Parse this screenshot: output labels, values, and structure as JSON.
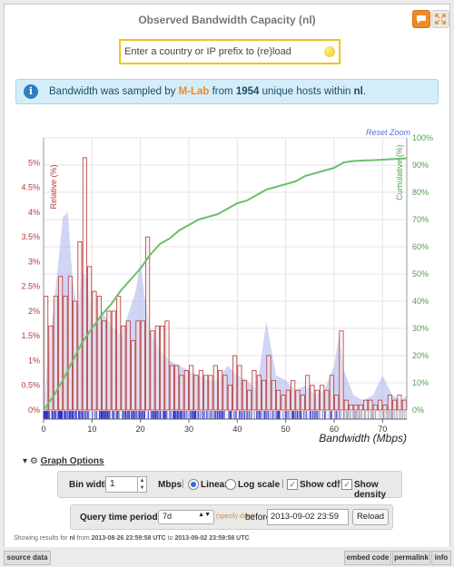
{
  "header": {
    "title": "Observed Bandwidth Capacity (nl)",
    "comment_icon": "speech-bubble-icon",
    "fullscreen_icon": "fullscreen-icon",
    "accent_color": "#f08a24"
  },
  "search": {
    "placeholder": "Enter a country or IP prefix to (re)load"
  },
  "info": {
    "icon": "info-icon",
    "pre": "Bandwidth was sampled by ",
    "source": "M-Lab",
    "mid": " from ",
    "hosts": "1954",
    "mid2": " unique hosts within ",
    "country": "nl",
    "end": "."
  },
  "chart": {
    "reset_zoom": "Reset Zoom"
  },
  "chart_data": {
    "type": "bar",
    "xlabel": "Bandwidth (Mbps)",
    "ylabel_left": "Relative (%)",
    "ylabel_right": "Cumulative (%)",
    "xlim": [
      0,
      75
    ],
    "ylim_left": [
      0,
      5.5
    ],
    "ylim_right": [
      0,
      100
    ],
    "x_ticks": [
      0,
      10,
      20,
      30,
      40,
      50,
      60,
      70
    ],
    "y_ticks_left": [
      "0%",
      "0.5%",
      "1%",
      "1.5%",
      "2%",
      "2.5%",
      "3%",
      "3.5%",
      "4%",
      "4.5%",
      "5%"
    ],
    "y_ticks_right": [
      "0%",
      "10%",
      "20%",
      "30%",
      "40%",
      "50%",
      "60%",
      "70%",
      "80%",
      "90%",
      "100%"
    ],
    "grid": true,
    "bin_width": 1,
    "series": [
      {
        "kind": "histogram",
        "color": "#b33a3a",
        "values": [
          2.3,
          1.7,
          2.3,
          2.7,
          2.3,
          2.7,
          2.2,
          3.4,
          5.1,
          2.9,
          2.4,
          2.3,
          1.8,
          2.0,
          2.0,
          2.3,
          1.7,
          1.8,
          1.4,
          1.8,
          1.8,
          3.5,
          1.6,
          1.7,
          1.7,
          1.8,
          0.9,
          0.9,
          0.7,
          0.8,
          0.9,
          0.7,
          0.8,
          0.7,
          0.7,
          0.9,
          0.8,
          0.7,
          0.5,
          1.1,
          0.9,
          0.6,
          0.4,
          0.8,
          0.7,
          0.6,
          1.1,
          0.6,
          0.4,
          0.3,
          0.4,
          0.6,
          0.4,
          0.3,
          0.7,
          0.5,
          0.4,
          0.5,
          0.4,
          0.7,
          0.3,
          1.6,
          0.2,
          0.1,
          0.1,
          0.1,
          0.2,
          0.2,
          0.1,
          0.2,
          0.1,
          0.3,
          0.2,
          0.3,
          0.2
        ]
      },
      {
        "kind": "density",
        "color": "#b9bdf0",
        "x": [
          0,
          2,
          4,
          5,
          6,
          7,
          8,
          9,
          10,
          12,
          14,
          16,
          18,
          19,
          20,
          21,
          22,
          24,
          26,
          28,
          30,
          32,
          34,
          36,
          38,
          40,
          42,
          44,
          46,
          48,
          50,
          52,
          54,
          56,
          58,
          60,
          61,
          62,
          64,
          66,
          68,
          70,
          72,
          74,
          75
        ],
        "values": [
          0.2,
          2.0,
          3.9,
          4.0,
          2.6,
          2.0,
          2.8,
          2.7,
          1.6,
          2.0,
          1.7,
          1.5,
          2.1,
          2.4,
          3.0,
          2.2,
          1.6,
          1.2,
          1.0,
          0.9,
          0.8,
          0.7,
          0.6,
          0.6,
          0.9,
          0.7,
          0.6,
          0.4,
          1.8,
          0.7,
          0.6,
          0.4,
          0.5,
          0.3,
          0.4,
          0.9,
          1.5,
          0.8,
          0.3,
          0.2,
          0.3,
          0.7,
          0.3,
          0.2,
          0.3
        ]
      },
      {
        "name": "Cumulative",
        "kind": "cdf",
        "color": "#6bbf6b",
        "x": [
          0,
          2,
          4,
          6,
          8,
          10,
          12,
          14,
          16,
          18,
          20,
          22,
          24,
          26,
          28,
          30,
          32,
          34,
          36,
          38,
          40,
          42,
          44,
          46,
          48,
          50,
          52,
          54,
          56,
          58,
          60,
          62,
          64,
          66,
          68,
          70,
          72,
          75
        ],
        "values": [
          0,
          5,
          11,
          18,
          25,
          30,
          35,
          39,
          44,
          48,
          52,
          57,
          61,
          63,
          66,
          68,
          70,
          71,
          72,
          74,
          76,
          77,
          79,
          81,
          82,
          83,
          84,
          86,
          87,
          88,
          89,
          91,
          91.5,
          91.7,
          91.8,
          92,
          92.2,
          92.5
        ]
      }
    ]
  },
  "graph_options": {
    "toggle_icon": "triangle-down-icon",
    "gear_icon": "gear-icon",
    "label": "Graph Options",
    "bin_width_label": "Bin width:",
    "bin_width_value": "1",
    "units": "Mbps",
    "scale_linear": "Linear",
    "scale_log": "Log scale",
    "show_cdf": "Show cdf",
    "show_density": "Show density",
    "separator": "|"
  },
  "query": {
    "label": "Query time period:",
    "period": "7d",
    "specify": "(specify date)",
    "before": "before",
    "date": "2013-09-02 23:59",
    "reload": "Reload"
  },
  "status": {
    "pre": "Showing results for ",
    "country": "nl",
    "from_word": " from ",
    "from": "2013-08-26 23:59:58 UTC",
    "to_word": " to ",
    "to": "2013-09-02 23:59:58 UTC"
  },
  "footer": {
    "source_data": "source data",
    "embed_code": "embed code",
    "permalink": "permalink",
    "info": "info"
  }
}
